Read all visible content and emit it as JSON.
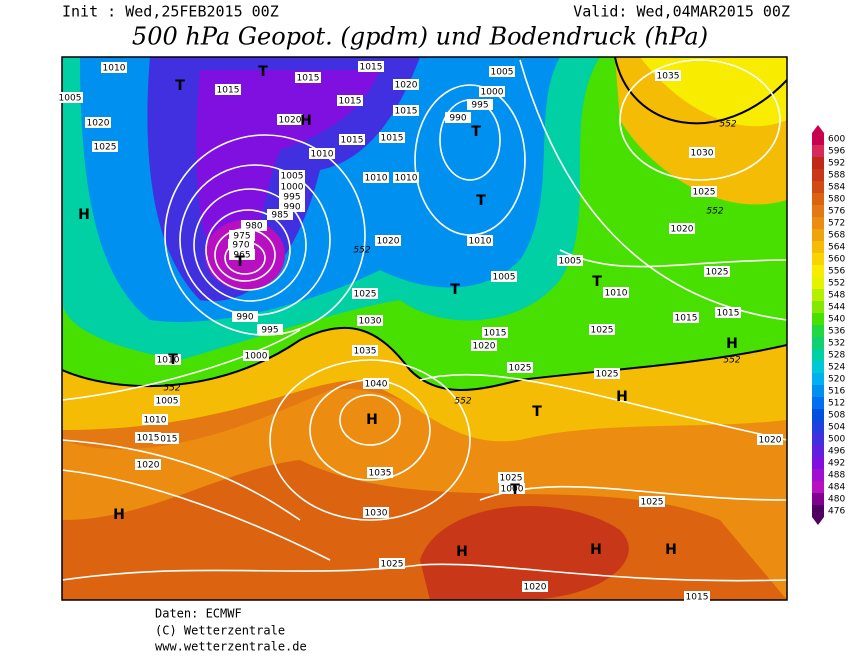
{
  "header": {
    "init": "Init : Wed,25FEB2015 00Z",
    "valid": "Valid: Wed,04MAR2015 00Z",
    "title": "500 hPa Geopot. (gpdm) und Bodendruck (hPa)"
  },
  "legend": {
    "values": [
      600,
      596,
      592,
      588,
      584,
      580,
      576,
      572,
      568,
      564,
      560,
      556,
      552,
      548,
      544,
      540,
      536,
      532,
      528,
      524,
      520,
      516,
      512,
      508,
      504,
      500,
      496,
      492,
      488,
      484,
      480,
      476
    ],
    "colors": [
      "#c8004e",
      "#d82a5a",
      "#c02818",
      "#c83818",
      "#d04c14",
      "#dc6410",
      "#e47812",
      "#ec8c10",
      "#f0a40c",
      "#f4bc04",
      "#f8d400",
      "#f8ec00",
      "#e4f400",
      "#b4f000",
      "#84e800",
      "#48e000",
      "#20d840",
      "#10d070",
      "#00d0a4",
      "#00c8d4",
      "#00b0f0",
      "#0090f0",
      "#0070f0",
      "#0050e0",
      "#2040e0",
      "#4030e0",
      "#6020e0",
      "#8010e0",
      "#a010d0",
      "#b810c0",
      "#800090",
      "#500060"
    ]
  },
  "map": {
    "isobar_labels": [
      1010,
      1015,
      1015,
      1015,
      1015,
      1020,
      1015,
      1015,
      1005,
      1000,
      995,
      990,
      1020,
      1025,
      1010,
      1015,
      1010,
      1010,
      1005,
      1000,
      995,
      990,
      985,
      980,
      975,
      970,
      965,
      1020,
      1025,
      1030,
      1035,
      1040,
      1035,
      1030,
      1025,
      1025,
      1020,
      1015,
      1010,
      1005,
      1000,
      995,
      990,
      1010,
      1015,
      1020,
      1025,
      1005,
      1005,
      1010,
      1015,
      1015,
      1020,
      1020,
      1025,
      1025,
      1025,
      1030,
      1035,
      1025,
      1020,
      1015,
      1010,
      1005,
      1000,
      1015,
      1020,
      1025
    ],
    "contour_labels": [
      552,
      552,
      552,
      552,
      552,
      552
    ],
    "centers": [
      "T",
      "T",
      "H",
      "T",
      "T",
      "T",
      "H",
      "T",
      "T",
      "H",
      "T",
      "T",
      "H",
      "H",
      "H",
      "H",
      "H",
      "H",
      "T"
    ]
  },
  "footer": {
    "source": "Daten: ECMWF",
    "copyright": "(C) Wetterzentrale",
    "url": "www.wetterzentrale.de"
  }
}
